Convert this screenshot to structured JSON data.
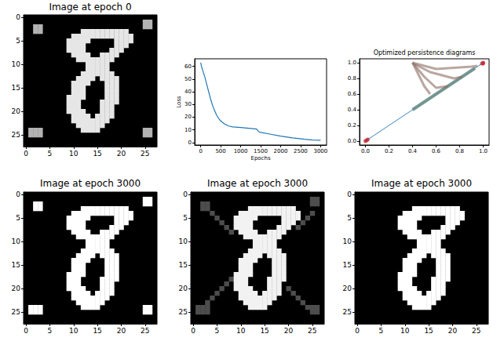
{
  "chart_data": [
    {
      "type": "heatmap",
      "title": "Image at epoch 0",
      "xlim": [
        -0.5,
        27.5
      ],
      "ylim": [
        27.5,
        -0.5
      ],
      "xticks": [
        0,
        5,
        10,
        15,
        20,
        25
      ],
      "yticks": [
        0,
        5,
        10,
        15,
        20,
        25
      ],
      "value_range": [
        0,
        1
      ],
      "pixels": [
        [
          2,
          2,
          3,
          0.7
        ],
        [
          3,
          2,
          3,
          0.7
        ],
        [
          1,
          25,
          26,
          0.7
        ],
        [
          2,
          25,
          26,
          0.7
        ],
        [
          24,
          1,
          3,
          0.7
        ],
        [
          25,
          1,
          3,
          0.7
        ],
        [
          24,
          25,
          26,
          0.7
        ],
        [
          25,
          25,
          26,
          0.7
        ],
        [
          3,
          12,
          21,
          0.9
        ],
        [
          4,
          10,
          22,
          0.9
        ],
        [
          5,
          9,
          13,
          0.9
        ],
        [
          5,
          19,
          22,
          0.9
        ],
        [
          6,
          9,
          12,
          0.9
        ],
        [
          6,
          19,
          21,
          0.9
        ],
        [
          7,
          9,
          12,
          0.9
        ],
        [
          7,
          18,
          20,
          0.9
        ],
        [
          8,
          10,
          13,
          0.9
        ],
        [
          8,
          16,
          19,
          0.9
        ],
        [
          9,
          11,
          18,
          0.9
        ],
        [
          10,
          13,
          17,
          0.9
        ],
        [
          11,
          13,
          17,
          0.9
        ],
        [
          12,
          12,
          18,
          0.9
        ],
        [
          13,
          11,
          14,
          0.9
        ],
        [
          13,
          16,
          19,
          0.9
        ],
        [
          14,
          10,
          13,
          0.9
        ],
        [
          14,
          17,
          19,
          0.9
        ],
        [
          15,
          10,
          12,
          0.9
        ],
        [
          15,
          17,
          19,
          0.9
        ],
        [
          16,
          10,
          12,
          0.9
        ],
        [
          16,
          17,
          19,
          0.9
        ],
        [
          17,
          9,
          12,
          0.9
        ],
        [
          17,
          17,
          19,
          0.9
        ],
        [
          18,
          9,
          11,
          0.9
        ],
        [
          18,
          16,
          19,
          0.9
        ],
        [
          19,
          9,
          11,
          0.9
        ],
        [
          19,
          16,
          18,
          0.9
        ],
        [
          20,
          9,
          12,
          0.9
        ],
        [
          20,
          16,
          18,
          0.9
        ],
        [
          21,
          10,
          13,
          0.9
        ],
        [
          21,
          15,
          18,
          0.9
        ],
        [
          22,
          10,
          17,
          0.9
        ],
        [
          23,
          11,
          16,
          0.9
        ],
        [
          24,
          12,
          15,
          0.9
        ]
      ]
    },
    {
      "type": "line",
      "x_label": "Epochs",
      "y_label": "Loss",
      "xlim": [
        -150,
        3150
      ],
      "ylim": [
        -2,
        66
      ],
      "xticks": [
        0,
        500,
        1000,
        1500,
        2000,
        2500,
        3000
      ],
      "yticks": [
        0,
        10,
        20,
        30,
        40,
        50,
        60
      ],
      "color": "#1f77b4",
      "x": [
        0,
        20,
        50,
        100,
        150,
        200,
        250,
        300,
        350,
        400,
        450,
        500,
        600,
        700,
        800,
        1000,
        1200,
        1400,
        1450,
        1500,
        1700,
        2000,
        2300,
        2600,
        2800,
        3000
      ],
      "values": [
        63,
        60,
        57,
        52,
        46,
        40,
        34,
        29,
        25,
        21.5,
        19,
        17,
        14.5,
        13,
        12.3,
        11.8,
        11.2,
        10.6,
        8.5,
        8,
        6.8,
        5,
        3.6,
        2.5,
        2,
        1.8
      ]
    },
    {
      "type": "line",
      "title": "Optimized persistence diagrams",
      "xlim": [
        -0.05,
        1.05
      ],
      "ylim": [
        -0.05,
        1.05
      ],
      "xticks": [
        {
          "value": 0,
          "label": "0.0"
        },
        0.2,
        0.4,
        0.6,
        0.8,
        {
          "value": 1,
          "label": "1.0"
        }
      ],
      "yticks": [
        {
          "value": 0,
          "label": "0.0"
        },
        0.2,
        0.4,
        0.6,
        0.8,
        {
          "value": 1,
          "label": "1.0"
        }
      ],
      "series": [
        {
          "type": "line",
          "color": "#1f77b4",
          "x": [
            0,
            1
          ],
          "values": [
            0,
            1
          ]
        },
        {
          "type": "line",
          "color": "#6a8f8a",
          "x": [
            0.4,
            0.93
          ],
          "values": [
            0.4,
            0.93
          ]
        },
        {
          "type": "line",
          "color": "#8c6d62",
          "x": [
            0.4,
            0.45,
            0.5,
            0.55
          ],
          "values": [
            1.0,
            0.85,
            0.7,
            0.6
          ]
        },
        {
          "type": "line",
          "color": "#8c6d62",
          "x": [
            0.4,
            0.5,
            0.6,
            0.7
          ],
          "values": [
            1.0,
            0.82,
            0.68,
            0.7
          ]
        },
        {
          "type": "line",
          "color": "#8c6d62",
          "x": [
            0.42,
            0.55,
            0.75,
            0.82
          ],
          "values": [
            0.98,
            0.88,
            0.8,
            0.82
          ]
        },
        {
          "type": "line",
          "color": "#8c6d62",
          "x": [
            0.4,
            0.6,
            0.9,
            0.95
          ],
          "values": [
            1.0,
            0.92,
            0.95,
            0.96
          ]
        },
        {
          "type": "scatter",
          "color": "#d62728",
          "x": [
            0,
            0.01,
            0.02,
            0.99,
            1,
            1
          ],
          "values": [
            0,
            0.01,
            0.02,
            0.99,
            1,
            0.99
          ]
        }
      ]
    },
    {
      "type": "heatmap",
      "title": "Image at epoch 3000",
      "xlim": [
        -0.5,
        27.5
      ],
      "ylim": [
        27.5,
        -0.5
      ],
      "xticks": [
        0,
        5,
        10,
        15,
        20,
        25
      ],
      "yticks": [
        0,
        5,
        10,
        15,
        20,
        25
      ],
      "value_range": [
        0,
        1
      ],
      "pixels": [
        [
          2,
          2,
          3,
          1
        ],
        [
          3,
          2,
          3,
          1
        ],
        [
          1,
          25,
          26,
          1
        ],
        [
          2,
          25,
          26,
          1
        ],
        [
          24,
          1,
          3,
          1
        ],
        [
          25,
          1,
          3,
          1
        ],
        [
          24,
          25,
          26,
          1
        ],
        [
          25,
          25,
          26,
          1
        ],
        [
          3,
          12,
          21,
          1
        ],
        [
          4,
          10,
          22,
          1
        ],
        [
          5,
          9,
          13,
          1
        ],
        [
          5,
          19,
          22,
          1
        ],
        [
          6,
          9,
          12,
          1
        ],
        [
          6,
          19,
          21,
          1
        ],
        [
          7,
          9,
          12,
          1
        ],
        [
          7,
          18,
          20,
          1
        ],
        [
          8,
          10,
          13,
          1
        ],
        [
          8,
          16,
          19,
          1
        ],
        [
          9,
          11,
          18,
          1
        ],
        [
          10,
          13,
          17,
          1
        ],
        [
          11,
          13,
          17,
          1
        ],
        [
          12,
          12,
          18,
          1
        ],
        [
          13,
          11,
          14,
          1
        ],
        [
          13,
          16,
          19,
          1
        ],
        [
          14,
          10,
          13,
          1
        ],
        [
          14,
          17,
          19,
          1
        ],
        [
          15,
          10,
          12,
          1
        ],
        [
          15,
          17,
          19,
          1
        ],
        [
          16,
          10,
          12,
          1
        ],
        [
          16,
          17,
          19,
          1
        ],
        [
          17,
          9,
          12,
          1
        ],
        [
          17,
          17,
          19,
          1
        ],
        [
          18,
          9,
          11,
          1
        ],
        [
          18,
          16,
          19,
          1
        ],
        [
          19,
          9,
          11,
          1
        ],
        [
          19,
          16,
          18,
          1
        ],
        [
          20,
          9,
          12,
          1
        ],
        [
          20,
          16,
          18,
          1
        ],
        [
          21,
          10,
          13,
          1
        ],
        [
          21,
          15,
          18,
          1
        ],
        [
          22,
          10,
          17,
          1
        ],
        [
          23,
          11,
          16,
          1
        ],
        [
          24,
          12,
          15,
          1
        ]
      ]
    },
    {
      "type": "heatmap",
      "title": "Image at epoch 3000",
      "xlim": [
        -0.5,
        27.5
      ],
      "ylim": [
        27.5,
        -0.5
      ],
      "xticks": [
        0,
        5,
        10,
        15,
        20,
        25
      ],
      "yticks": [
        0,
        5,
        10,
        15,
        20,
        25
      ],
      "value_range": [
        0,
        1
      ],
      "pixels": [
        [
          2,
          2,
          3,
          0.3
        ],
        [
          3,
          2,
          3,
          0.3
        ],
        [
          1,
          25,
          26,
          0.3
        ],
        [
          2,
          25,
          26,
          0.3
        ],
        [
          24,
          1,
          3,
          0.3
        ],
        [
          25,
          1,
          3,
          0.3
        ],
        [
          24,
          25,
          26,
          0.3
        ],
        [
          25,
          25,
          26,
          0.3
        ],
        [
          4,
          4,
          4,
          0.3
        ],
        [
          5,
          5,
          5,
          0.3
        ],
        [
          6,
          6,
          6,
          0.3
        ],
        [
          7,
          7,
          7,
          0.3
        ],
        [
          8,
          8,
          8,
          0.3
        ],
        [
          23,
          3,
          3,
          0.3
        ],
        [
          22,
          4,
          4,
          0.3
        ],
        [
          21,
          5,
          5,
          0.3
        ],
        [
          20,
          6,
          6,
          0.3
        ],
        [
          19,
          7,
          7,
          0.3
        ],
        [
          18,
          8,
          8,
          0.3
        ],
        [
          24,
          24,
          24,
          0.3
        ],
        [
          23,
          23,
          23,
          0.3
        ],
        [
          22,
          22,
          22,
          0.3
        ],
        [
          21,
          21,
          21,
          0.3
        ],
        [
          20,
          20,
          20,
          0.3
        ],
        [
          4,
          25,
          25,
          0.3
        ],
        [
          5,
          24,
          24,
          0.3
        ],
        [
          6,
          23,
          23,
          0.3
        ],
        [
          7,
          22,
          22,
          0.3
        ],
        [
          3,
          12,
          21,
          0.95
        ],
        [
          4,
          10,
          22,
          0.95
        ],
        [
          5,
          9,
          13,
          0.95
        ],
        [
          5,
          19,
          22,
          0.95
        ],
        [
          6,
          9,
          12,
          0.95
        ],
        [
          6,
          19,
          21,
          0.95
        ],
        [
          7,
          9,
          12,
          0.95
        ],
        [
          7,
          18,
          20,
          0.95
        ],
        [
          8,
          10,
          13,
          0.95
        ],
        [
          8,
          16,
          19,
          0.95
        ],
        [
          9,
          11,
          18,
          0.95
        ],
        [
          10,
          13,
          17,
          0.95
        ],
        [
          11,
          13,
          17,
          0.95
        ],
        [
          12,
          12,
          18,
          0.95
        ],
        [
          13,
          11,
          14,
          0.95
        ],
        [
          13,
          16,
          19,
          0.95
        ],
        [
          14,
          10,
          13,
          0.95
        ],
        [
          14,
          17,
          19,
          0.95
        ],
        [
          15,
          10,
          12,
          0.95
        ],
        [
          15,
          17,
          19,
          0.95
        ],
        [
          16,
          10,
          12,
          0.95
        ],
        [
          16,
          17,
          19,
          0.95
        ],
        [
          17,
          9,
          12,
          0.95
        ],
        [
          17,
          17,
          19,
          0.95
        ],
        [
          18,
          9,
          11,
          0.95
        ],
        [
          18,
          16,
          19,
          0.95
        ],
        [
          19,
          9,
          11,
          0.95
        ],
        [
          19,
          16,
          18,
          0.95
        ],
        [
          20,
          9,
          12,
          0.95
        ],
        [
          20,
          16,
          18,
          0.95
        ],
        [
          21,
          10,
          13,
          0.95
        ],
        [
          21,
          15,
          18,
          0.95
        ],
        [
          22,
          10,
          17,
          0.95
        ],
        [
          23,
          11,
          16,
          0.95
        ],
        [
          24,
          12,
          15,
          0.95
        ]
      ]
    },
    {
      "type": "heatmap",
      "title": "Image at epoch 3000",
      "xlim": [
        -0.5,
        27.5
      ],
      "ylim": [
        27.5,
        -0.5
      ],
      "xticks": [
        0,
        5,
        10,
        15,
        20,
        25
      ],
      "yticks": [
        0,
        5,
        10,
        15,
        20,
        25
      ],
      "value_range": [
        0,
        1
      ],
      "pixels": [
        [
          3,
          12,
          21,
          1
        ],
        [
          4,
          10,
          22,
          1
        ],
        [
          5,
          9,
          13,
          1
        ],
        [
          5,
          19,
          22,
          1
        ],
        [
          6,
          9,
          12,
          1
        ],
        [
          6,
          19,
          21,
          1
        ],
        [
          7,
          9,
          12,
          1
        ],
        [
          7,
          18,
          20,
          1
        ],
        [
          8,
          10,
          13,
          1
        ],
        [
          8,
          16,
          19,
          1
        ],
        [
          9,
          11,
          18,
          1
        ],
        [
          10,
          13,
          17,
          1
        ],
        [
          11,
          13,
          17,
          1
        ],
        [
          12,
          12,
          18,
          1
        ],
        [
          13,
          11,
          14,
          1
        ],
        [
          13,
          16,
          19,
          1
        ],
        [
          14,
          10,
          13,
          1
        ],
        [
          14,
          17,
          19,
          1
        ],
        [
          15,
          10,
          12,
          1
        ],
        [
          15,
          17,
          19,
          1
        ],
        [
          16,
          10,
          12,
          1
        ],
        [
          16,
          17,
          19,
          1
        ],
        [
          17,
          9,
          12,
          1
        ],
        [
          17,
          17,
          19,
          1
        ],
        [
          18,
          9,
          11,
          1
        ],
        [
          18,
          16,
          19,
          1
        ],
        [
          19,
          9,
          11,
          1
        ],
        [
          19,
          16,
          18,
          1
        ],
        [
          20,
          9,
          12,
          1
        ],
        [
          20,
          16,
          18,
          1
        ],
        [
          21,
          10,
          13,
          1
        ],
        [
          21,
          15,
          18,
          1
        ],
        [
          22,
          10,
          17,
          1
        ],
        [
          23,
          11,
          16,
          1
        ],
        [
          24,
          12,
          15,
          1
        ]
      ]
    }
  ]
}
